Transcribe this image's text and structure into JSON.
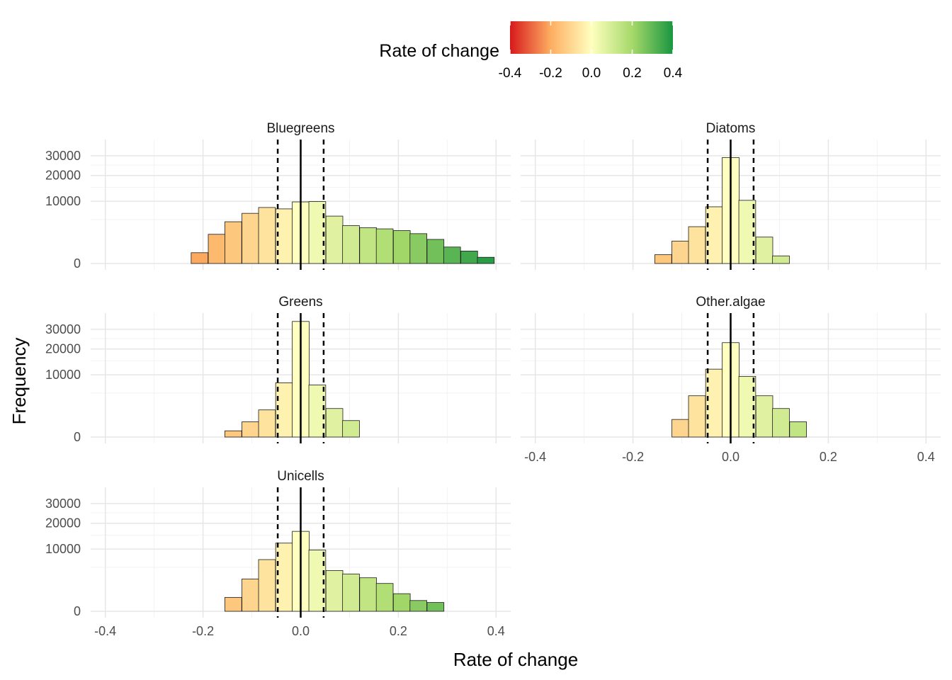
{
  "chart_data": {
    "type": "bar",
    "subtype": "histogram (faceted, 5 panels, sqrt-scaled y axis)",
    "xlabel": "Rate of change",
    "ylabel": "Frequency",
    "xlim": [
      -0.43,
      0.43
    ],
    "x_ticks": [
      -0.4,
      -0.2,
      0.0,
      0.2,
      0.4
    ],
    "x_tick_labels": [
      "-0.4",
      "-0.2",
      "0.0",
      "0.2",
      "0.4"
    ],
    "y_scale": "sqrt",
    "ylim": [
      0,
      37000
    ],
    "y_ticks": [
      0,
      10000,
      20000,
      30000
    ],
    "y_tick_labels": [
      "0",
      "10000",
      "20000",
      "30000"
    ],
    "grid": true,
    "reference_lines": [
      {
        "x": 0.0,
        "style": "solid"
      },
      {
        "x": -0.047,
        "style": "dashed"
      },
      {
        "x": 0.047,
        "style": "dashed"
      }
    ],
    "bin_width": 0.0345,
    "bin_centers": [
      -0.207,
      -0.172,
      -0.138,
      -0.103,
      -0.069,
      -0.034,
      0.0,
      0.034,
      0.069,
      0.103,
      0.138,
      0.172,
      0.207,
      0.241,
      0.276,
      0.31,
      0.345,
      0.379,
      0.414
    ],
    "legend": {
      "title": "Rate of change",
      "type": "colorbar",
      "position": "top",
      "range": [
        -0.4,
        0.4
      ],
      "tick_labels": [
        "-0.4",
        "-0.2",
        "0.0",
        "0.2",
        "0.4"
      ],
      "colors": [
        "#d7191c",
        "#fdae61",
        "#ffffbf",
        "#a6d96a",
        "#1a9641"
      ]
    },
    "facets": [
      {
        "name": "Bluegreens",
        "values": [
          300,
          2200,
          4500,
          6500,
          8100,
          7700,
          9800,
          9900,
          5800,
          3700,
          3300,
          3100,
          2800,
          2300,
          1500,
          700,
          400,
          100,
          0
        ]
      },
      {
        "name": "Diatoms",
        "values": [
          0,
          0,
          200,
          1300,
          3500,
          8300,
          29000,
          10300,
          1800,
          150,
          0,
          0,
          0,
          0,
          0,
          0,
          0,
          0,
          0
        ]
      },
      {
        "name": "Greens",
        "values": [
          0,
          0,
          100,
          600,
          1900,
          7600,
          34500,
          7000,
          2100,
          700,
          0,
          0,
          0,
          0,
          0,
          0,
          0,
          0,
          0
        ]
      },
      {
        "name": "Other.algae",
        "values": [
          0,
          0,
          0,
          800,
          4400,
          11900,
          23000,
          9500,
          4400,
          2100,
          600,
          0,
          0,
          0,
          0,
          0,
          0,
          0,
          0
        ]
      },
      {
        "name": "Unicells",
        "values": [
          0,
          0,
          500,
          2700,
          6900,
          12000,
          16500,
          9700,
          4300,
          3600,
          2900,
          2000,
          800,
          300,
          200,
          0,
          0,
          0,
          0
        ]
      }
    ]
  }
}
